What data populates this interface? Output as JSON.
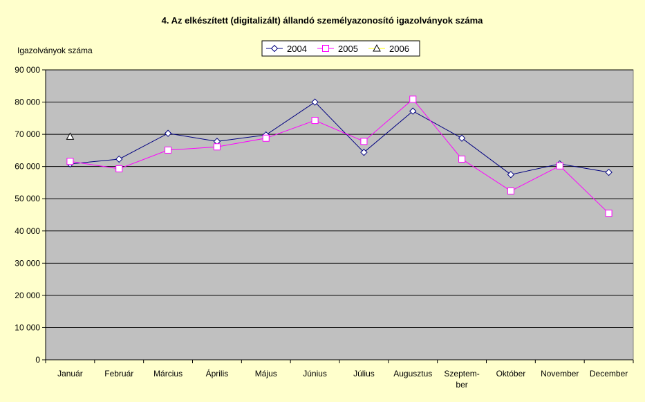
{
  "chart_data": {
    "type": "line",
    "title": "4. Az elkészített (digitalizált) állandó személyazonosító igazolványok száma",
    "ylabel": "Igazolványok száma",
    "xlabel": "",
    "categories": [
      "Január",
      "Február",
      "Március",
      "Április",
      "Május",
      "Június",
      "Július",
      "Augusztus",
      "Szeptem-ber",
      "Október",
      "November",
      "December"
    ],
    "category_lines": [
      [
        "Január"
      ],
      [
        "Február"
      ],
      [
        "Március"
      ],
      [
        "Április"
      ],
      [
        "Május"
      ],
      [
        "Június"
      ],
      [
        "Július"
      ],
      [
        "Augusztus"
      ],
      [
        "Szeptem-",
        "ber"
      ],
      [
        "Október"
      ],
      [
        "November"
      ],
      [
        "December"
      ]
    ],
    "ylim": [
      0,
      90000
    ],
    "yticks": [
      0,
      10000,
      20000,
      30000,
      40000,
      50000,
      60000,
      70000,
      80000,
      90000
    ],
    "ytick_labels": [
      "0",
      "10 000",
      "20 000",
      "30 000",
      "40 000",
      "50 000",
      "60 000",
      "70 000",
      "80 000",
      "90 000"
    ],
    "grid": true,
    "legend_position": "top-center",
    "series": [
      {
        "name": "2004",
        "color": "#000080",
        "marker": "diamond",
        "values": [
          60800,
          62300,
          70300,
          67800,
          69800,
          80000,
          64400,
          77200,
          68800,
          57500,
          60800,
          58200
        ]
      },
      {
        "name": "2005",
        "color": "#ff00ff",
        "marker": "square",
        "values": [
          61600,
          59300,
          65100,
          66100,
          68800,
          74300,
          67800,
          80900,
          62300,
          52400,
          60200,
          45500
        ]
      },
      {
        "name": "2006",
        "color": "#ffff00",
        "marker": "triangle",
        "values": [
          69300,
          null,
          null,
          null,
          null,
          null,
          null,
          null,
          null,
          null,
          null,
          null
        ]
      }
    ],
    "plot_background": "#c0c0c0",
    "page_background": "#ffffcc"
  }
}
